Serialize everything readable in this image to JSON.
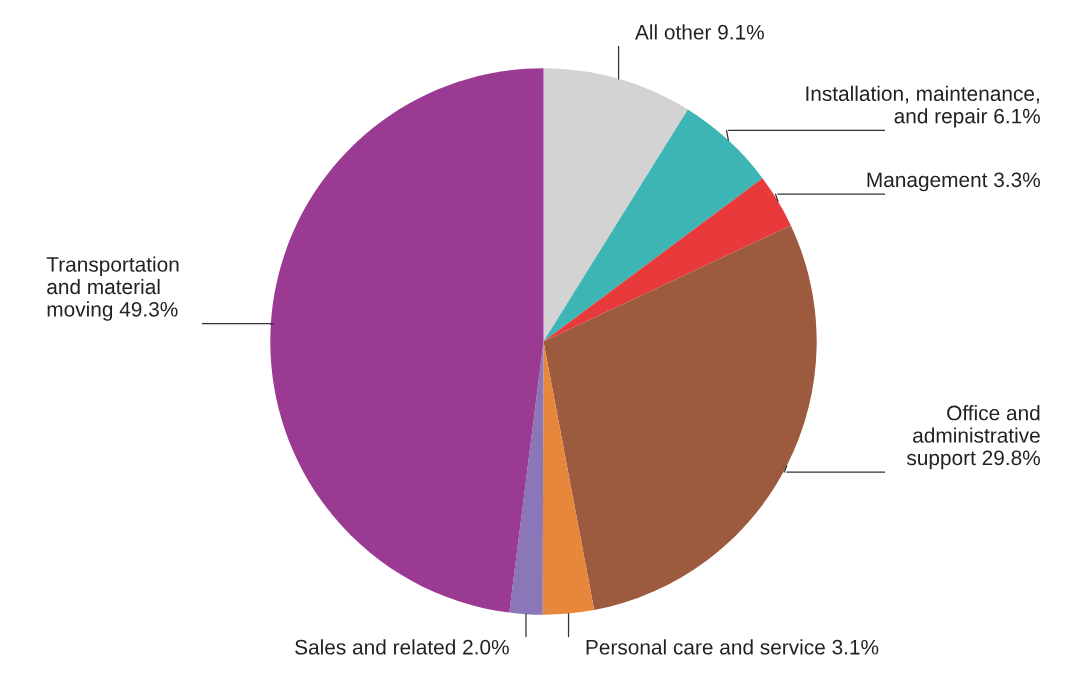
{
  "chart_data": {
    "type": "pie",
    "categories": [
      "All other",
      "Installation, maintenance,\nand repair",
      "Management",
      "Office and\nadministrative\nsupport",
      "Personal care and service",
      "Sales and related",
      "Transportation\nand material\nmoving"
    ],
    "values": [
      9.1,
      6.1,
      3.3,
      29.8,
      3.1,
      2.0,
      49.3
    ],
    "value_labels": [
      "9.1%",
      "6.1%",
      "3.3%",
      "29.8%",
      "3.1%",
      "2.0%",
      "49.3%"
    ],
    "colors": [
      "#d3d3d3",
      "#3db5b5",
      "#e83a3a",
      "#9c5a3f",
      "#e6873c",
      "#8b76b8",
      "#9b3a92"
    ],
    "legend": false
  }
}
